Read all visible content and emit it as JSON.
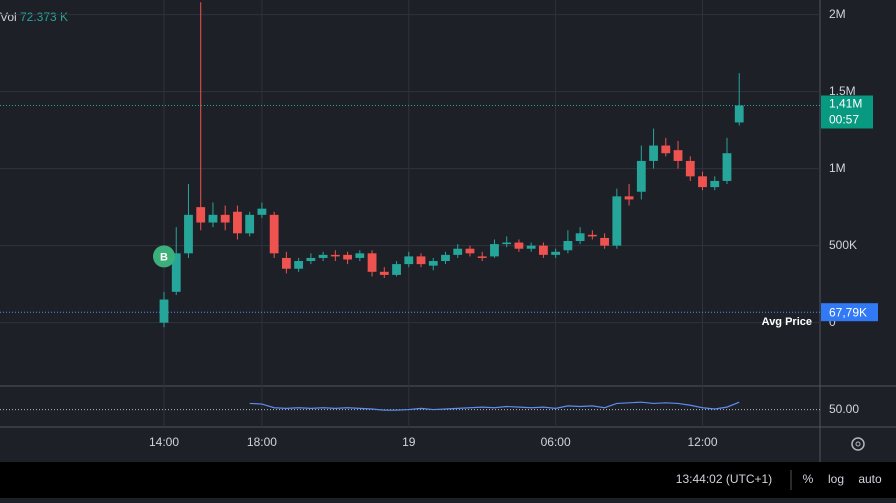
{
  "chart_data": {
    "type": "candlestick",
    "volume_label": "Vol",
    "volume_value": "72.373 K",
    "x": [
      14,
      14.5,
      15,
      15.5,
      16,
      16.5,
      17,
      17.5,
      18,
      18.5,
      19,
      19.5,
      20,
      20.5,
      21,
      21.5,
      22,
      22.5,
      23,
      23.5,
      24,
      24.5,
      25,
      25.5,
      26,
      26.5,
      27,
      27.5,
      28,
      28.5,
      29,
      29.5,
      30,
      30.5,
      31,
      31.5,
      32,
      32.5,
      33,
      33.5,
      34,
      34.5,
      35,
      35.5,
      36,
      36.5,
      37,
      37.5
    ],
    "open": [
      0,
      200000,
      450000,
      750000,
      650000,
      700000,
      720000,
      580000,
      700000,
      700000,
      420000,
      350000,
      400000,
      420000,
      440000,
      440000,
      420000,
      450000,
      330000,
      310000,
      380000,
      430000,
      370000,
      400000,
      440000,
      480000,
      430000,
      430000,
      510000,
      520000,
      480000,
      500000,
      440000,
      470000,
      530000,
      570000,
      550000,
      500000,
      820000,
      850000,
      1050000,
      1150000,
      1120000,
      1050000,
      950000,
      880000,
      920000,
      1300000
    ],
    "close": [
      150000,
      450000,
      700000,
      650000,
      700000,
      650000,
      580000,
      700000,
      740000,
      450000,
      350000,
      400000,
      420000,
      440000,
      430000,
      410000,
      450000,
      330000,
      310000,
      380000,
      430000,
      380000,
      400000,
      440000,
      480000,
      450000,
      420000,
      510000,
      520000,
      480000,
      500000,
      440000,
      460000,
      530000,
      580000,
      560000,
      500000,
      820000,
      800000,
      1050000,
      1150000,
      1100000,
      1050000,
      950000,
      880000,
      920000,
      1100000,
      1410000
    ],
    "high": [
      200000,
      620000,
      900000,
      2080000,
      780000,
      760000,
      760000,
      720000,
      780000,
      720000,
      460000,
      420000,
      450000,
      460000,
      470000,
      460000,
      470000,
      470000,
      360000,
      400000,
      460000,
      450000,
      420000,
      460000,
      510000,
      500000,
      460000,
      540000,
      560000,
      540000,
      520000,
      520000,
      480000,
      600000,
      620000,
      600000,
      580000,
      870000,
      900000,
      1150000,
      1260000,
      1200000,
      1180000,
      1080000,
      980000,
      950000,
      1200000,
      1620000
    ],
    "low": [
      -30000,
      180000,
      420000,
      600000,
      620000,
      600000,
      540000,
      560000,
      680000,
      420000,
      320000,
      330000,
      380000,
      400000,
      400000,
      380000,
      400000,
      300000,
      290000,
      300000,
      360000,
      360000,
      340000,
      380000,
      420000,
      430000,
      400000,
      420000,
      490000,
      460000,
      460000,
      420000,
      420000,
      450000,
      510000,
      540000,
      480000,
      480000,
      760000,
      800000,
      1000000,
      1080000,
      1000000,
      920000,
      860000,
      860000,
      900000,
      1280000
    ],
    "up_color": "#26a69a",
    "down_color": "#ef5350",
    "xlim": [
      7.3,
      40.8
    ],
    "xticks": [
      {
        "value": 14,
        "label": "14:00"
      },
      {
        "value": 18,
        "label": "18:00"
      },
      {
        "value": 24,
        "label": "19"
      },
      {
        "value": 30,
        "label": "06:00"
      },
      {
        "value": 36,
        "label": "12:00"
      }
    ],
    "ylim": [
      -405000,
      2095000
    ],
    "yticks": [
      {
        "value": 0,
        "label": "0"
      },
      {
        "value": 500000,
        "label": "500K"
      },
      {
        "value": 1000000,
        "label": "1M"
      },
      {
        "value": 1500000,
        "label": "1.5M"
      },
      {
        "value": 2000000,
        "label": "2M"
      }
    ],
    "grid": true,
    "last_price": 1410000,
    "last_price_label": "1,41M",
    "countdown": "00:57",
    "avg_price": 67790,
    "avg_price_label": "67,79K",
    "avg_price_title": "Avg Price",
    "marker": {
      "x": 14,
      "value": 430000,
      "label": "B"
    },
    "indicator": {
      "color": "#5b8def",
      "ylim": [
        25,
        85
      ],
      "yticks": [
        {
          "value": 50,
          "label": "50.00"
        }
      ],
      "values": [
        null,
        null,
        null,
        null,
        null,
        null,
        null,
        60,
        59,
        53,
        52,
        53,
        52,
        53,
        52,
        53,
        52,
        51,
        49,
        49,
        50,
        52,
        50,
        51,
        52,
        53,
        54,
        53,
        55,
        54,
        53,
        54,
        52,
        56,
        55,
        56,
        53,
        60,
        61,
        62,
        60,
        61,
        60,
        57,
        53,
        51,
        54,
        62
      ]
    },
    "footer": {
      "time": "13:44:02 (UTC+1)",
      "percent": "%",
      "log": "log",
      "auto": "auto"
    }
  }
}
